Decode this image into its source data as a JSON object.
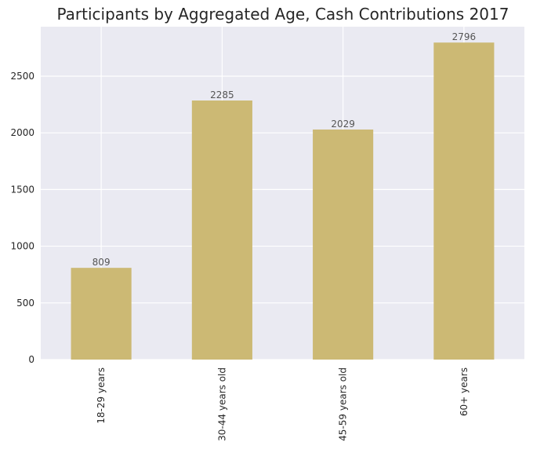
{
  "chart_data": {
    "type": "bar",
    "title": "Participants by Aggregated Age, Cash Contributions 2017",
    "xlabel": "",
    "ylabel": "",
    "categories": [
      "18-29 years",
      "30-44 years old",
      "45-59 years old",
      "60+ years"
    ],
    "values": [
      809,
      2285,
      2029,
      2796
    ],
    "data_labels": [
      "809",
      "2285",
      "2029",
      "2796"
    ],
    "ylim": [
      0,
      2936
    ],
    "yticks": [
      0,
      500,
      1000,
      1500,
      2000,
      2500
    ],
    "ytick_labels": [
      "0",
      "500",
      "1000",
      "1500",
      "2000",
      "2500"
    ],
    "grid": true,
    "legend": "none",
    "colors": {
      "bar": "#ccb974",
      "plot_background": "#eaeaf2",
      "grid": "#ffffff",
      "text": "#262626",
      "data_label": "#555555"
    }
  }
}
